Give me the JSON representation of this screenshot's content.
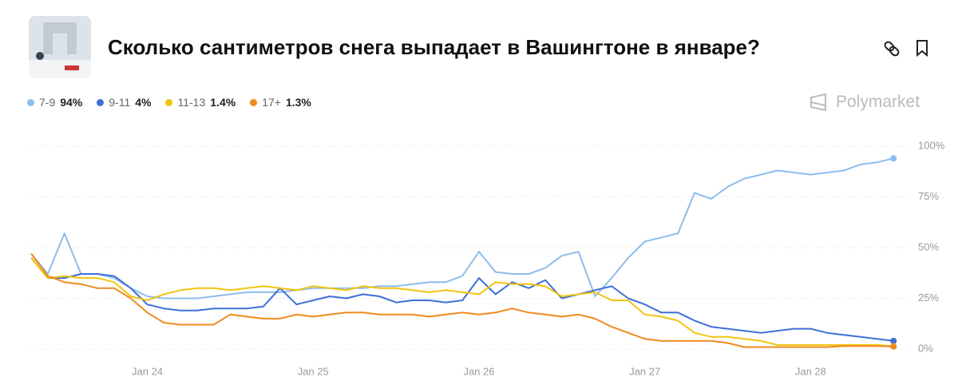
{
  "header": {
    "title": "Сколько сантиметров снега выпадает в Вашингтоне в январе?",
    "brand": "Polymarket"
  },
  "chart_data": {
    "type": "line",
    "x": [
      23.3,
      23.4,
      23.5,
      23.6,
      23.7,
      23.8,
      23.9,
      24.0,
      24.1,
      24.2,
      24.3,
      24.4,
      24.5,
      24.6,
      24.7,
      24.8,
      24.9,
      25.0,
      25.1,
      25.2,
      25.3,
      25.4,
      25.5,
      25.6,
      25.7,
      25.8,
      25.9,
      26.0,
      26.1,
      26.2,
      26.3,
      26.4,
      26.5,
      26.6,
      26.7,
      26.8,
      26.9,
      27.0,
      27.1,
      27.2,
      27.3,
      27.4,
      27.5,
      27.6,
      27.7,
      27.8,
      27.9,
      28.0,
      28.1,
      28.2,
      28.3,
      28.4,
      28.5
    ],
    "xlim": [
      23.28,
      28.6
    ],
    "xticks": [
      {
        "value": 24,
        "label": "Jan 24"
      },
      {
        "value": 25,
        "label": "Jan 25"
      },
      {
        "value": 26,
        "label": "Jan 26"
      },
      {
        "value": 27,
        "label": "Jan 27"
      },
      {
        "value": 28,
        "label": "Jan 28"
      }
    ],
    "ylim": [
      0,
      100
    ],
    "yticks": [
      {
        "value": 0,
        "label": "0%"
      },
      {
        "value": 25,
        "label": "25%"
      },
      {
        "value": 50,
        "label": "50%"
      },
      {
        "value": 75,
        "label": "75%"
      },
      {
        "value": 100,
        "label": "100%"
      }
    ],
    "grid": true,
    "series": [
      {
        "name": "7-9",
        "color": "#8cbdec",
        "latest": {
          "value": 94,
          "label": "94%"
        },
        "values": [
          47,
          37,
          57,
          37,
          37,
          35,
          30,
          26,
          25,
          25,
          25,
          26,
          27,
          28,
          28,
          28,
          29,
          30,
          30,
          30,
          30,
          31,
          31,
          32,
          33,
          33,
          36,
          48,
          38,
          37,
          37,
          40,
          46,
          48,
          26,
          35,
          45,
          53,
          55,
          57,
          77,
          74,
          80,
          84,
          86,
          88,
          87,
          86,
          87,
          88,
          91,
          92,
          94
        ]
      },
      {
        "name": "9-11",
        "color": "#3f6fd8",
        "latest": {
          "value": 4,
          "label": "4%"
        },
        "values": [
          45,
          35,
          35,
          37,
          37,
          36,
          30,
          22,
          20,
          19,
          19,
          20,
          20,
          20,
          21,
          30,
          22,
          24,
          26,
          25,
          27,
          26,
          23,
          24,
          24,
          23,
          24,
          35,
          27,
          33,
          30,
          34,
          25,
          27,
          29,
          31,
          25,
          22,
          18,
          18,
          14,
          11,
          10,
          9,
          8,
          9,
          10,
          10,
          8,
          7,
          6,
          5,
          4
        ]
      },
      {
        "name": "11-13",
        "color": "#f1c40f",
        "latest": {
          "value": 1.4,
          "label": "1.4%"
        },
        "values": [
          45,
          35,
          36,
          35,
          35,
          33,
          26,
          24,
          27,
          29,
          30,
          30,
          29,
          30,
          31,
          30,
          29,
          31,
          30,
          29,
          31,
          30,
          30,
          29,
          28,
          29,
          28,
          27,
          33,
          32,
          32,
          31,
          26,
          27,
          28,
          24,
          24,
          17,
          16,
          14,
          8,
          6,
          6,
          5,
          4,
          2,
          2,
          2,
          2,
          2,
          2,
          2,
          1.4
        ]
      },
      {
        "name": "17+",
        "color": "#ef8a1f",
        "latest": {
          "value": 1.3,
          "label": "1.3%"
        },
        "values": [
          47,
          36,
          33,
          32,
          30,
          30,
          25,
          18,
          13,
          12,
          12,
          12,
          17,
          16,
          15,
          15,
          17,
          16,
          17,
          18,
          18,
          17,
          17,
          17,
          16,
          17,
          18,
          17,
          18,
          20,
          18,
          17,
          16,
          17,
          15,
          11,
          8,
          5,
          4,
          4,
          4,
          4,
          3,
          1,
          1,
          1,
          1,
          1,
          1,
          1.5,
          1.5,
          1.5,
          1.3
        ]
      }
    ]
  }
}
